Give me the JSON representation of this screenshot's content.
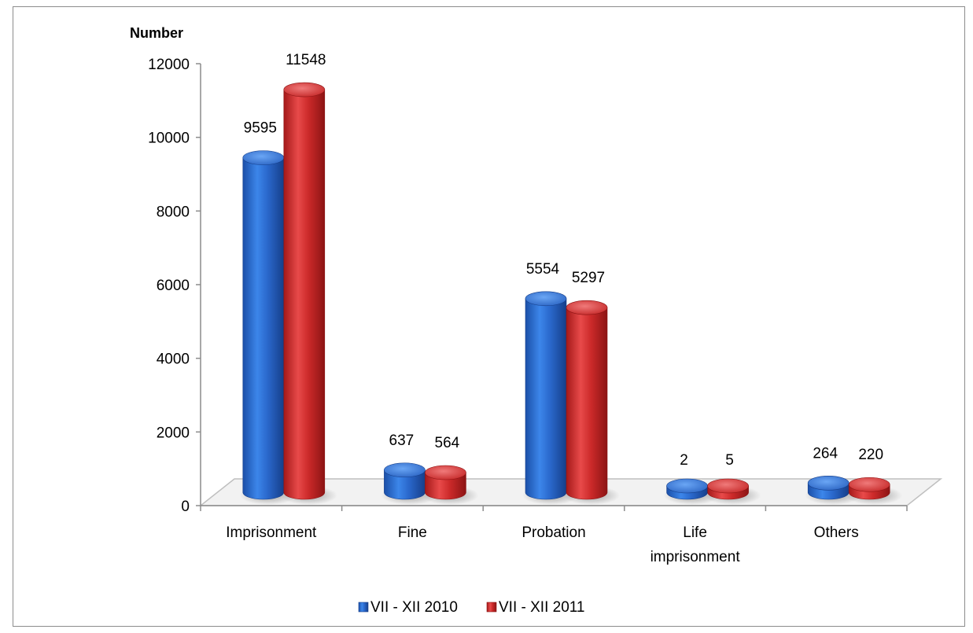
{
  "chart_data": {
    "type": "bar",
    "style": "3d-cylinder",
    "ylabel": "Number",
    "ylim": [
      0,
      12000
    ],
    "yticks": [
      0,
      2000,
      4000,
      6000,
      8000,
      10000,
      12000
    ],
    "grid": false,
    "legend_position": "bottom",
    "categories": [
      [
        "Imprisonment"
      ],
      [
        "Fine"
      ],
      [
        "Probation"
      ],
      [
        "Life",
        "imprisonment"
      ],
      [
        "Others"
      ]
    ],
    "series": [
      {
        "name": "VII - XII 2010",
        "color": "#2e6fd6",
        "values": [
          9595,
          637,
          5554,
          2,
          264
        ]
      },
      {
        "name": "VII - XII 2011",
        "color": "#d92c2c",
        "values": [
          11548,
          564,
          5297,
          5,
          220
        ]
      }
    ]
  }
}
